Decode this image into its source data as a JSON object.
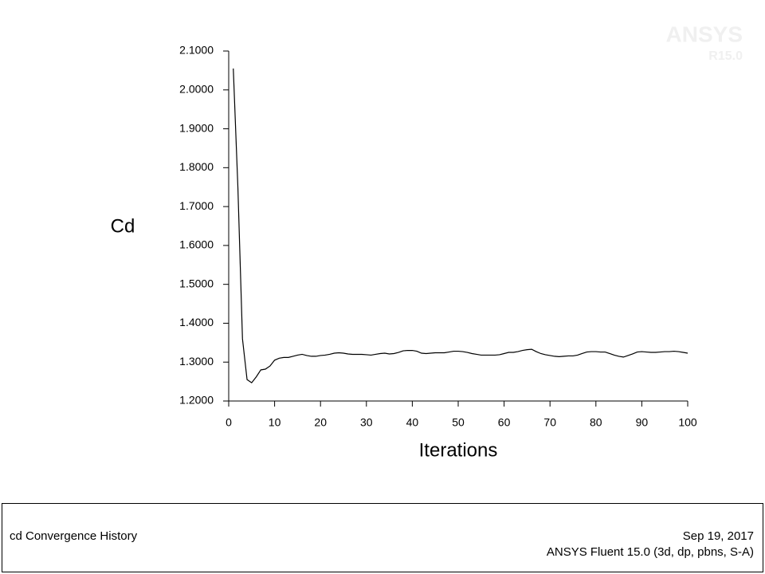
{
  "chart_data": {
    "type": "line",
    "x_label": "Iterations",
    "y_label": "Cd",
    "x": [
      1,
      2,
      3,
      4,
      5,
      6,
      7,
      8,
      9,
      10,
      11,
      12,
      13,
      14,
      15,
      16,
      17,
      18,
      19,
      20,
      21,
      22,
      23,
      24,
      25,
      26,
      27,
      28,
      29,
      30,
      31,
      32,
      33,
      34,
      35,
      36,
      37,
      38,
      39,
      40,
      41,
      42,
      43,
      44,
      45,
      46,
      47,
      48,
      49,
      50,
      51,
      52,
      53,
      54,
      55,
      56,
      57,
      58,
      59,
      60,
      61,
      62,
      63,
      64,
      65,
      66,
      67,
      68,
      69,
      70,
      71,
      72,
      73,
      74,
      75,
      76,
      77,
      78,
      79,
      80,
      81,
      82,
      83,
      84,
      85,
      86,
      87,
      88,
      89,
      90,
      91,
      92,
      93,
      94,
      95,
      96,
      97,
      98,
      99,
      100
    ],
    "series": [
      {
        "name": "cd",
        "color": "#000000",
        "values": [
          2.055,
          1.75,
          1.36,
          1.255,
          1.247,
          1.262,
          1.28,
          1.282,
          1.29,
          1.305,
          1.31,
          1.312,
          1.312,
          1.315,
          1.318,
          1.32,
          1.317,
          1.315,
          1.315,
          1.317,
          1.318,
          1.32,
          1.323,
          1.324,
          1.323,
          1.321,
          1.32,
          1.32,
          1.32,
          1.319,
          1.318,
          1.32,
          1.322,
          1.323,
          1.321,
          1.322,
          1.325,
          1.329,
          1.33,
          1.33,
          1.328,
          1.323,
          1.322,
          1.323,
          1.324,
          1.324,
          1.324,
          1.326,
          1.328,
          1.328,
          1.327,
          1.325,
          1.322,
          1.32,
          1.318,
          1.318,
          1.318,
          1.318,
          1.319,
          1.322,
          1.325,
          1.325,
          1.327,
          1.33,
          1.332,
          1.333,
          1.327,
          1.322,
          1.319,
          1.317,
          1.315,
          1.314,
          1.315,
          1.316,
          1.316,
          1.318,
          1.322,
          1.326,
          1.327,
          1.327,
          1.326,
          1.326,
          1.322,
          1.318,
          1.315,
          1.313,
          1.317,
          1.321,
          1.326,
          1.327,
          1.326,
          1.325,
          1.325,
          1.326,
          1.327,
          1.327,
          1.328,
          1.327,
          1.325,
          1.323
        ]
      }
    ],
    "xlim": [
      0,
      100
    ],
    "xticks": [
      0,
      10,
      20,
      30,
      40,
      50,
      60,
      70,
      80,
      90,
      100
    ],
    "ylim": [
      1.2,
      2.1
    ],
    "yticks": [
      {
        "value": 1.2,
        "label": "1.2000"
      },
      {
        "value": 1.3,
        "label": "1.3000"
      },
      {
        "value": 1.4,
        "label": "1.4000"
      },
      {
        "value": 1.5,
        "label": "1.5000"
      },
      {
        "value": 1.6,
        "label": "1.6000"
      },
      {
        "value": 1.7,
        "label": "1.7000"
      },
      {
        "value": 1.8,
        "label": "1.8000"
      },
      {
        "value": 1.9,
        "label": "1.9000"
      },
      {
        "value": 2.0,
        "label": "2.0000"
      },
      {
        "value": 2.1,
        "label": "2.1000"
      }
    ],
    "grid": false
  },
  "logo": {
    "name": "ANSYS",
    "release": "R15.0"
  },
  "footer": {
    "title": "cd Convergence History",
    "date": "Sep 19, 2017",
    "solver": "ANSYS Fluent 15.0 (3d, dp, pbns, S-A)"
  }
}
